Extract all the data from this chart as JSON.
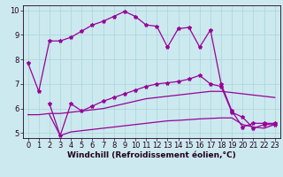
{
  "xlabel": "Windchill (Refroidissement éolien,°C)",
  "bg_color": "#cbe9ee",
  "line_color": "#990099",
  "xlim": [
    -0.5,
    23.5
  ],
  "ylim": [
    4.8,
    10.2
  ],
  "yticks": [
    5,
    6,
    7,
    8,
    9,
    10
  ],
  "xticks": [
    0,
    1,
    2,
    3,
    4,
    5,
    6,
    7,
    8,
    9,
    10,
    11,
    12,
    13,
    14,
    15,
    16,
    17,
    18,
    19,
    20,
    21,
    22,
    23
  ],
  "line1_x": [
    0,
    1,
    2,
    3,
    4,
    5,
    6,
    7,
    8,
    9,
    10,
    11,
    12,
    13,
    14,
    15,
    16,
    17,
    18,
    19,
    20,
    21,
    22,
    23
  ],
  "line1_y": [
    7.85,
    6.7,
    8.75,
    8.75,
    8.9,
    9.15,
    9.4,
    9.55,
    9.75,
    9.95,
    9.75,
    9.4,
    9.35,
    8.5,
    9.25,
    9.3,
    8.5,
    9.2,
    7.0,
    5.9,
    5.25,
    5.4,
    5.4,
    5.4
  ],
  "line2_x": [
    2,
    3,
    4,
    5,
    6,
    7,
    8,
    9,
    10,
    11,
    12,
    13,
    14,
    15,
    16,
    17,
    18,
    19,
    20,
    21,
    22,
    23
  ],
  "line2_y": [
    6.2,
    4.9,
    6.2,
    5.9,
    6.1,
    6.3,
    6.45,
    6.6,
    6.75,
    6.9,
    7.0,
    7.05,
    7.1,
    7.2,
    7.35,
    7.0,
    6.9,
    5.85,
    5.65,
    5.2,
    5.35,
    5.35
  ],
  "line3_x": [
    0,
    1,
    2,
    3,
    4,
    5,
    6,
    7,
    8,
    9,
    10,
    11,
    12,
    13,
    14,
    15,
    16,
    17,
    18,
    19,
    20,
    21,
    22,
    23
  ],
  "line3_y": [
    5.75,
    5.75,
    5.8,
    5.8,
    5.85,
    5.9,
    5.95,
    6.0,
    6.1,
    6.2,
    6.3,
    6.4,
    6.45,
    6.5,
    6.55,
    6.6,
    6.65,
    6.7,
    6.7,
    6.65,
    6.6,
    6.55,
    6.5,
    6.45
  ],
  "line4_x": [
    2,
    3,
    4,
    5,
    6,
    7,
    8,
    9,
    10,
    11,
    12,
    13,
    14,
    15,
    16,
    17,
    18,
    19,
    20,
    21,
    22,
    23
  ],
  "line4_y": [
    5.75,
    4.9,
    5.05,
    5.1,
    5.15,
    5.2,
    5.25,
    5.3,
    5.35,
    5.4,
    5.45,
    5.5,
    5.52,
    5.55,
    5.58,
    5.6,
    5.62,
    5.62,
    5.35,
    5.25,
    5.2,
    5.35
  ],
  "marker": "*",
  "marker_size": 3,
  "linewidth": 0.9,
  "xlabel_fontsize": 6.5,
  "tick_fontsize": 6,
  "tick_color": "#220022",
  "grid_color": "#aad4da",
  "grid_linewidth": 0.5
}
